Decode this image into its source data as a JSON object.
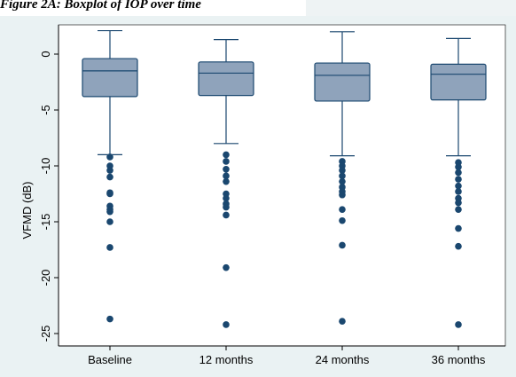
{
  "caption": "Figure 2A: Boxplot of IOP over time",
  "colors": {
    "page_background": "#ffffff",
    "outer_background": "#eaf2f3",
    "plot_background": "#ffffff",
    "box_fill": "#8fa3bb",
    "line": "#1a476f",
    "marker": "#1a476f",
    "tab_background": "#eef3f4"
  },
  "chart_data": {
    "type": "box",
    "title": "",
    "xlabel": "",
    "ylabel": "VFMD (dB)",
    "ylim": [
      -26,
      2.5
    ],
    "yticks": [
      0,
      -5,
      -10,
      -15,
      -20,
      -25
    ],
    "ytick_labels": [
      "0",
      "-5",
      "-10",
      "-15",
      "-20",
      "-25"
    ],
    "grid": false,
    "categories": [
      "Baseline",
      "12 months",
      "24 months",
      "36 months"
    ],
    "boxes": [
      {
        "q1": -3.8,
        "median": -1.5,
        "q3": -0.4,
        "whisker_low": -9.0,
        "whisker_high": 2.1,
        "outliers": [
          -9.2,
          -10.0,
          -10.4,
          -11.0,
          -12.4,
          -12.5,
          -13.6,
          -13.9,
          -14.1,
          -15.0,
          -17.3,
          -23.7
        ]
      },
      {
        "q1": -3.7,
        "median": -1.7,
        "q3": -0.7,
        "whisker_low": -8.0,
        "whisker_high": 1.3,
        "outliers": [
          -9.0,
          -9.6,
          -10.3,
          -10.9,
          -11.4,
          -12.5,
          -12.9,
          -13.4,
          -13.7,
          -14.4,
          -19.1,
          -24.2
        ]
      },
      {
        "q1": -4.2,
        "median": -1.9,
        "q3": -0.8,
        "whisker_low": -9.1,
        "whisker_high": 2.0,
        "outliers": [
          -9.6,
          -10.0,
          -10.4,
          -10.9,
          -11.4,
          -11.9,
          -12.3,
          -12.6,
          -13.9,
          -14.9,
          -17.1,
          -23.9
        ]
      },
      {
        "q1": -4.1,
        "median": -1.8,
        "q3": -0.9,
        "whisker_low": -9.1,
        "whisker_high": 1.4,
        "outliers": [
          -9.7,
          -10.1,
          -10.6,
          -11.2,
          -11.8,
          -12.3,
          -12.9,
          -13.3,
          -13.9,
          -15.6,
          -17.2,
          -24.2
        ]
      }
    ]
  }
}
